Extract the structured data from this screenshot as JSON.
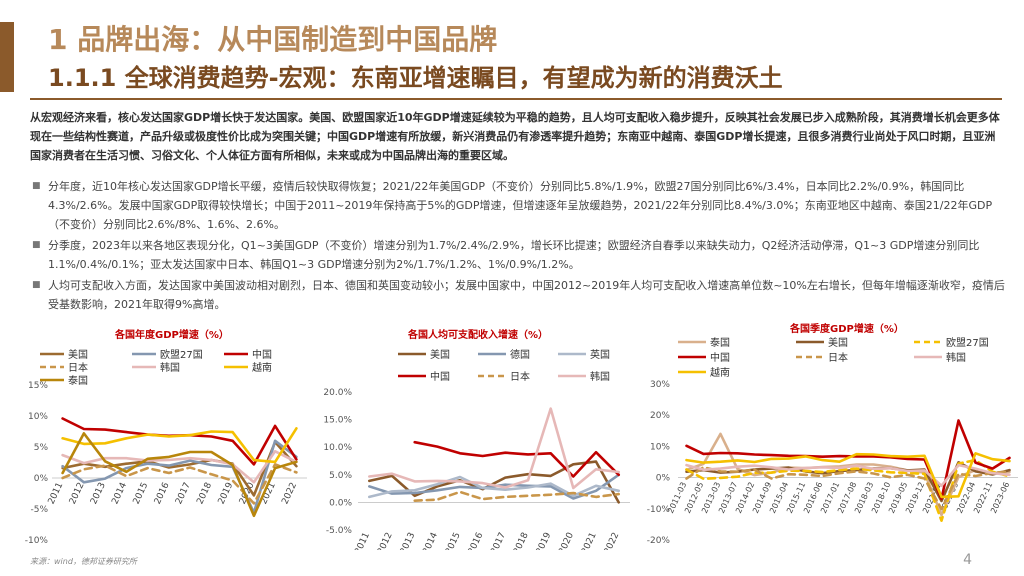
{
  "header": {
    "title": "1 品牌出海：从中国制造到中国品牌",
    "subtitle": "1.1.1 全球消费趋势-宏观：东南亚增速瞩目，有望成为新的消费沃土"
  },
  "intro": "从宏观经济来看，核心发达国家GDP增长快于发达国家。美国、欧盟国家近10年GDP增速延续较为平稳的趋势，且人均可支配收入稳步提升，反映其社会发展已步入成熟阶段，其消费增长机会更多体现在一些结构性赛道，产品升级或极度性价比成为突围关键；中国GDP增速有所放缓，新兴消费品仍有渗透率提升趋势；东南亚中越南、泰国GDP增长提速，且很多消费行业尚处于风口时期，且亚洲国家消费者在生活习惯、习俗文化、个人体征方面有所相似，未来或成为中国品牌出海的重要区域。",
  "bullets": [
    "分年度，近10年核心发达国家GDP增长平缓，疫情后较快取得恢复；2021/22年美国GDP（不变价）分别同比5.8%/1.9%，欧盟27国分别同比6%/3.4%，日本同比2.2%/0.9%，韩国同比4.3%/2.6%。发展中国家GDP取得较快增长；中国于2011~2019年保持高于5%的GDP增速，但增速逐年呈放缓趋势，2021/22年分别同比8.4%/3.0%；东南亚地区中越南、泰国21/22年GDP（不变价）分别同比2.6%/8%、1.6%、2.6%。",
    "分季度，2023年以来各地区表现分化，Q1~3美国GDP（不变价）增速分别为1.7%/2.4%/2.9%，增长环比提速；欧盟经济自春季以来缺失动力，Q2经济活动停滞，Q1~3 GDP增速分别同比1.1%/0.4%/0.1%；亚太发达国家中日本、韩国Q1~3 GDP增速分别为2%/1.7%/1.2%、1%/0.9%/1.2%。",
    "人均可支配收入方面，发达国家中美国波动相对剧烈，日本、德国和英国变动较小；发展中国家中，中国2012~2019年人均可支配收入增速高单位数~10%左右增长，但每年增幅逐渐收窄，疫情后受基数影响，2021年取得9%高增。"
  ],
  "chart_data": [
    {
      "type": "line",
      "title": "各国年度GDP增速（%）",
      "x": [
        "2011",
        "2012",
        "2013",
        "2014",
        "2015",
        "2016",
        "2017",
        "2018",
        "2019",
        "2020",
        "2021",
        "2022"
      ],
      "ylim": [
        -10,
        15
      ],
      "yticks": [
        "15%",
        "10%",
        "5%",
        "0%",
        "-5%",
        "-10%"
      ],
      "series": [
        {
          "name": "美国",
          "color": "#9c6b30",
          "dash": false,
          "values": [
            1.6,
            2.3,
            1.8,
            2.3,
            2.7,
            1.7,
            2.2,
            2.9,
            2.3,
            -2.8,
            5.8,
            1.9
          ]
        },
        {
          "name": "欧盟27国",
          "color": "#8497b0",
          "dash": false,
          "values": [
            1.9,
            -0.7,
            -0.1,
            1.6,
            2.3,
            2.0,
            2.8,
            2.1,
            1.8,
            -5.6,
            6.0,
            3.4
          ]
        },
        {
          "name": "中国",
          "color": "#c00000",
          "dash": false,
          "values": [
            9.6,
            7.9,
            7.8,
            7.4,
            7.0,
            6.8,
            6.9,
            6.7,
            6.0,
            2.2,
            8.4,
            3.0
          ]
        },
        {
          "name": "日本",
          "color": "#c9964a",
          "dash": true,
          "values": [
            0.0,
            1.4,
            2.0,
            0.3,
            1.6,
            0.8,
            1.7,
            0.6,
            -0.4,
            -4.1,
            2.2,
            0.9
          ]
        },
        {
          "name": "韩国",
          "color": "#e6b8b7",
          "dash": false,
          "values": [
            3.7,
            2.4,
            3.2,
            3.2,
            2.8,
            2.9,
            3.2,
            2.9,
            2.2,
            -0.7,
            4.3,
            2.6
          ]
        },
        {
          "name": "越南",
          "color": "#f5c000",
          "dash": false,
          "values": [
            6.4,
            5.5,
            5.6,
            6.4,
            7.0,
            6.7,
            6.9,
            7.5,
            7.4,
            2.9,
            2.6,
            8.0
          ]
        },
        {
          "name": "泰国",
          "color": "#b8860b",
          "dash": false,
          "values": [
            0.8,
            7.2,
            2.7,
            1.0,
            3.1,
            3.4,
            4.2,
            4.2,
            2.1,
            -6.1,
            1.6,
            2.6
          ]
        }
      ]
    },
    {
      "type": "line",
      "title": "各国人均可支配收入增速（%）",
      "x": [
        "2011",
        "2012",
        "2013",
        "2014",
        "2015",
        "2016",
        "2017",
        "2018",
        "2019",
        "2020",
        "2021",
        "2022"
      ],
      "ylim": [
        -5,
        20
      ],
      "yticks": [
        "20.0%",
        "15.0%",
        "10.0%",
        "5.0%",
        "0.0%",
        "-5.0%"
      ],
      "series": [
        {
          "name": "美国",
          "color": "#8b5a2b",
          "dash": false,
          "values": [
            3.9,
            4.8,
            1.2,
            2.9,
            4.0,
            2.4,
            4.5,
            5.1,
            4.8,
            6.9,
            7.4,
            0.0
          ]
        },
        {
          "name": "德国",
          "color": "#8497b0",
          "dash": false,
          "values": [
            2.9,
            1.6,
            1.7,
            2.2,
            2.8,
            2.6,
            3.2,
            3.0,
            2.9,
            0.7,
            2.1,
            5.0
          ]
        },
        {
          "name": "英国",
          "color": "#adb9ca",
          "dash": false,
          "values": [
            1.0,
            2.0,
            2.2,
            3.3,
            4.6,
            2.6,
            2.3,
            2.7,
            3.4,
            1.2,
            3.0,
            2.1
          ]
        },
        {
          "name": "中国",
          "color": "#c00000",
          "dash": false,
          "values": [
            null,
            null,
            10.9,
            10.1,
            8.9,
            8.4,
            9.0,
            8.7,
            8.9,
            4.7,
            9.1,
            5.0
          ]
        },
        {
          "name": "日本",
          "color": "#c9964a",
          "dash": true,
          "values": [
            null,
            null,
            0.3,
            0.5,
            1.9,
            0.6,
            1.0,
            1.2,
            1.4,
            1.7,
            1.0,
            1.5
          ]
        },
        {
          "name": "韩国",
          "color": "#e6b8b7",
          "dash": false,
          "values": [
            4.7,
            5.2,
            3.8,
            3.9,
            3.8,
            3.5,
            2.7,
            4.0,
            17.0,
            2.6,
            6.0,
            5.5
          ]
        }
      ]
    },
    {
      "type": "line",
      "title": "各国季度GDP增速（%）",
      "x": [
        "2011-03",
        "2012-05",
        "2013-03",
        "2013-07",
        "2014-02",
        "2014-09",
        "2015-04",
        "2015-11",
        "2016-06",
        "2017-01",
        "2017-08",
        "2018-03",
        "2018-10",
        "2019-05",
        "2019-12",
        "2021-02",
        "2021-09",
        "2022-04",
        "2022-11",
        "2023-06"
      ],
      "ylim": [
        -20,
        30
      ],
      "yticks": [
        "30%",
        "20%",
        "10%",
        "0%",
        "-10%",
        "-20%"
      ],
      "series": [
        {
          "name": "泰国",
          "color": "#d9b08c",
          "dash": false,
          "values": [
            2.5,
            4.4,
            14.0,
            2.8,
            0.8,
            1.6,
            3.2,
            3.0,
            3.4,
            3.6,
            4.2,
            4.2,
            3.5,
            2.3,
            1.6,
            -12.0,
            0.2,
            2.4,
            1.5,
            1.8
          ]
        },
        {
          "name": "美国",
          "color": "#8b5a2b",
          "dash": false,
          "values": [
            1.9,
            2.4,
            1.6,
            1.9,
            2.6,
            2.9,
            3.2,
            2.0,
            1.4,
            2.1,
            2.4,
            2.9,
            3.0,
            2.3,
            2.6,
            -7.5,
            4.9,
            2.0,
            1.0,
            2.4
          ]
        },
        {
          "name": "欧盟27国",
          "color": "#f5c000",
          "dash": true,
          "values": [
            2.6,
            -0.4,
            -0.1,
            0.3,
            1.5,
            1.6,
            2.2,
            2.1,
            1.8,
            2.4,
            2.9,
            2.3,
            1.7,
            1.5,
            1.2,
            -13.8,
            4.5,
            5.6,
            1.9,
            0.4
          ]
        },
        {
          "name": "中国",
          "color": "#c00000",
          "dash": false,
          "values": [
            10.2,
            7.6,
            7.9,
            7.8,
            7.4,
            7.2,
            7.0,
            6.9,
            6.7,
            6.9,
            6.8,
            6.8,
            6.5,
            6.0,
            5.8,
            -6.8,
            18.3,
            4.8,
            2.9,
            6.3
          ]
        },
        {
          "name": "日本",
          "color": "#c9964a",
          "dash": true,
          "values": [
            -0.3,
            3.3,
            2.0,
            1.9,
            2.5,
            -0.3,
            1.1,
            0.9,
            0.5,
            1.4,
            2.0,
            1.3,
            0.1,
            0.9,
            -0.3,
            -10.1,
            1.2,
            0.5,
            1.5,
            2.0
          ]
        },
        {
          "name": "韩国",
          "color": "#e6b8b7",
          "dash": false,
          "values": [
            4.0,
            2.5,
            2.9,
            3.5,
            3.8,
            3.3,
            2.6,
            3.1,
            3.3,
            3.1,
            3.8,
            2.8,
            3.0,
            2.1,
            2.3,
            -2.6,
            4.0,
            2.9,
            1.4,
            0.9
          ]
        },
        {
          "name": "越南",
          "color": "#f5c000",
          "dash": false,
          "values": [
            5.6,
            4.8,
            5.1,
            5.5,
            5.0,
            6.0,
            6.1,
            6.8,
            5.6,
            5.1,
            7.5,
            7.4,
            6.9,
            6.7,
            7.0,
            -6.2,
            -6.0,
            7.8,
            5.9,
            5.3
          ]
        }
      ]
    }
  ],
  "footer": {
    "source": "来源：wind，德邦证券研究所",
    "page": "4"
  }
}
